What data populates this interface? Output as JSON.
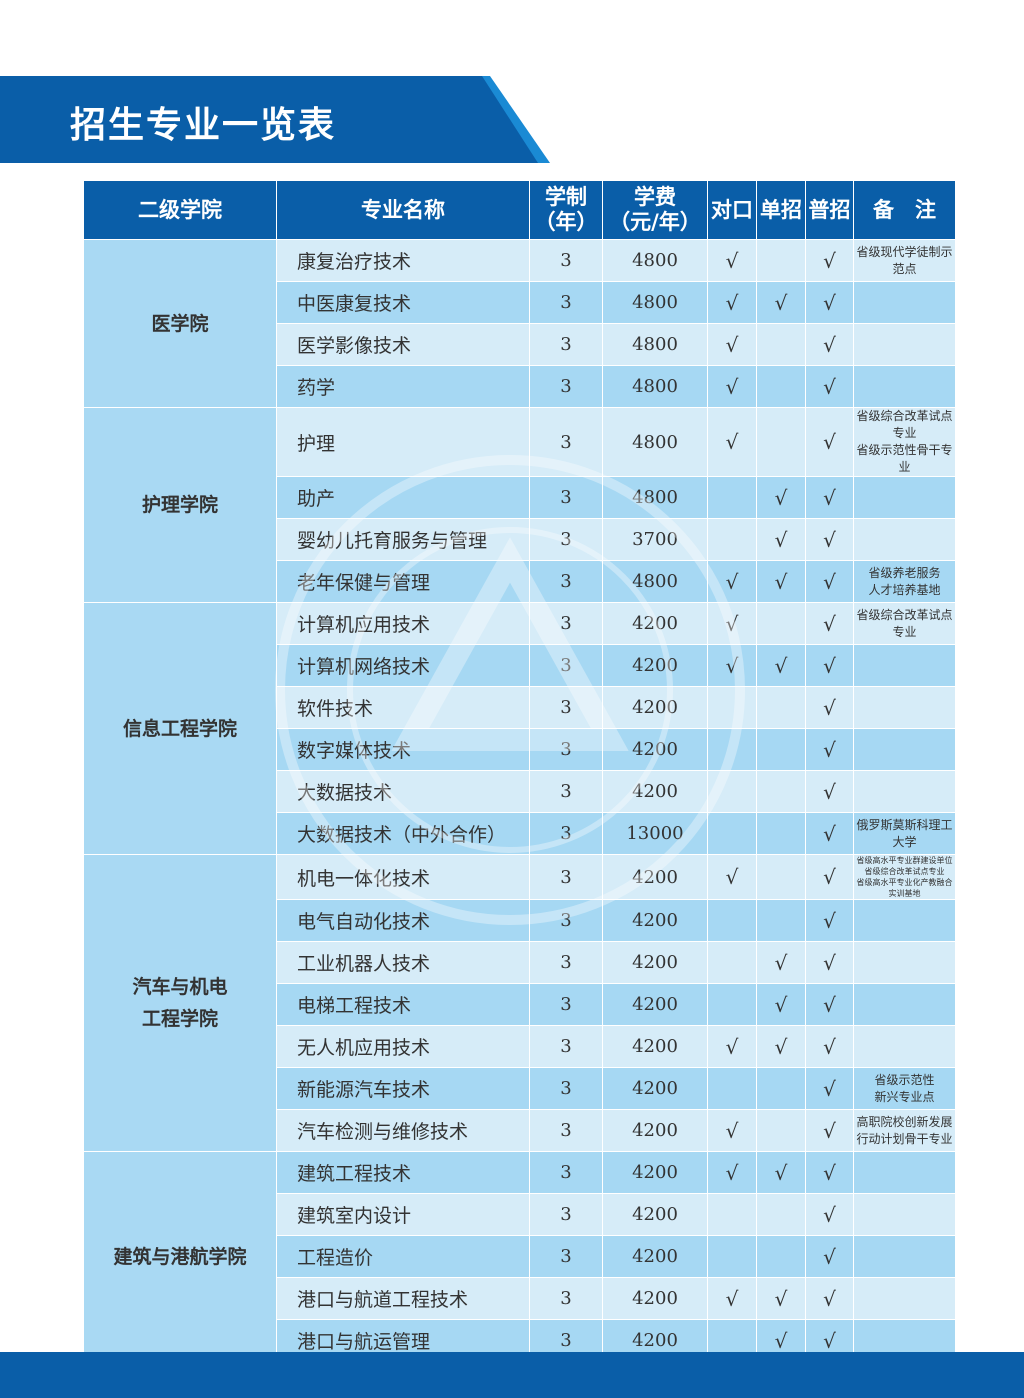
{
  "title": "招生专业一览表",
  "colors": {
    "header": "#0a5ea8",
    "row_light": "#d6ecf8",
    "row_dark": "#a6d8f3",
    "college": "#a9d9f3"
  },
  "columns": [
    "二级学院",
    "专业名称",
    "学制\n（年）",
    "学费\n（元/年）",
    "对口",
    "单招",
    "普招",
    "备　注"
  ],
  "check": "√",
  "colleges": [
    {
      "name": "医学院",
      "rows": [
        {
          "major": "康复治疗技术",
          "years": "3",
          "fee": "4800",
          "duikou": true,
          "danzhao": false,
          "puzhao": true,
          "note": "省级现代学徒制示范点"
        },
        {
          "major": "中医康复技术",
          "years": "3",
          "fee": "4800",
          "duikou": true,
          "danzhao": true,
          "puzhao": true,
          "note": ""
        },
        {
          "major": "医学影像技术",
          "years": "3",
          "fee": "4800",
          "duikou": true,
          "danzhao": false,
          "puzhao": true,
          "note": ""
        },
        {
          "major": "药学",
          "years": "3",
          "fee": "4800",
          "duikou": true,
          "danzhao": false,
          "puzhao": true,
          "note": ""
        }
      ]
    },
    {
      "name": "护理学院",
      "rows": [
        {
          "major": "护理",
          "years": "3",
          "fee": "4800",
          "duikou": true,
          "danzhao": false,
          "puzhao": true,
          "note": "省级综合改革试点专业\n省级示范性骨干专业"
        },
        {
          "major": "助产",
          "years": "3",
          "fee": "4800",
          "duikou": false,
          "danzhao": true,
          "puzhao": true,
          "note": ""
        },
        {
          "major": "婴幼儿托育服务与管理",
          "years": "3",
          "fee": "3700",
          "duikou": false,
          "danzhao": true,
          "puzhao": true,
          "note": ""
        },
        {
          "major": "老年保健与管理",
          "years": "3",
          "fee": "4800",
          "duikou": true,
          "danzhao": true,
          "puzhao": true,
          "note": "省级养老服务\n人才培养基地"
        }
      ]
    },
    {
      "name": "信息工程学院",
      "rows": [
        {
          "major": "计算机应用技术",
          "years": "3",
          "fee": "4200",
          "duikou": true,
          "danzhao": false,
          "puzhao": true,
          "note": "省级综合改革试点专业"
        },
        {
          "major": "计算机网络技术",
          "years": "3",
          "fee": "4200",
          "duikou": true,
          "danzhao": true,
          "puzhao": true,
          "note": ""
        },
        {
          "major": "软件技术",
          "years": "3",
          "fee": "4200",
          "duikou": false,
          "danzhao": false,
          "puzhao": true,
          "note": ""
        },
        {
          "major": "数字媒体技术",
          "years": "3",
          "fee": "4200",
          "duikou": false,
          "danzhao": false,
          "puzhao": true,
          "note": ""
        },
        {
          "major": "大数据技术",
          "years": "3",
          "fee": "4200",
          "duikou": false,
          "danzhao": false,
          "puzhao": true,
          "note": ""
        },
        {
          "major": "大数据技术（中外合作）",
          "years": "3",
          "fee": "13000",
          "duikou": false,
          "danzhao": false,
          "puzhao": true,
          "note": "俄罗斯莫斯科理工大学"
        }
      ]
    },
    {
      "name": "汽车与机电\n工程学院",
      "rows": [
        {
          "major": "机电一体化技术",
          "years": "3",
          "fee": "4200",
          "duikou": true,
          "danzhao": false,
          "puzhao": true,
          "note": "省级高水平专业群建设单位\n省级综合改革试点专业\n省级高水平专业化产教融合实训基地",
          "tiny": true
        },
        {
          "major": "电气自动化技术",
          "years": "3",
          "fee": "4200",
          "duikou": false,
          "danzhao": false,
          "puzhao": true,
          "note": ""
        },
        {
          "major": "工业机器人技术",
          "years": "3",
          "fee": "4200",
          "duikou": false,
          "danzhao": true,
          "puzhao": true,
          "note": ""
        },
        {
          "major": "电梯工程技术",
          "years": "3",
          "fee": "4200",
          "duikou": false,
          "danzhao": true,
          "puzhao": true,
          "note": ""
        },
        {
          "major": "无人机应用技术",
          "years": "3",
          "fee": "4200",
          "duikou": true,
          "danzhao": true,
          "puzhao": true,
          "note": ""
        },
        {
          "major": "新能源汽车技术",
          "years": "3",
          "fee": "4200",
          "duikou": false,
          "danzhao": false,
          "puzhao": true,
          "note": "省级示范性\n新兴专业点"
        },
        {
          "major": "汽车检测与维修技术",
          "years": "3",
          "fee": "4200",
          "duikou": true,
          "danzhao": false,
          "puzhao": true,
          "note": "高职院校创新发展\n行动计划骨干专业"
        }
      ]
    },
    {
      "name": "建筑与港航学院",
      "rows": [
        {
          "major": "建筑工程技术",
          "years": "3",
          "fee": "4200",
          "duikou": true,
          "danzhao": true,
          "puzhao": true,
          "note": ""
        },
        {
          "major": "建筑室内设计",
          "years": "3",
          "fee": "4200",
          "duikou": false,
          "danzhao": false,
          "puzhao": true,
          "note": ""
        },
        {
          "major": "工程造价",
          "years": "3",
          "fee": "4200",
          "duikou": false,
          "danzhao": false,
          "puzhao": true,
          "note": ""
        },
        {
          "major": "港口与航道工程技术",
          "years": "3",
          "fee": "4200",
          "duikou": true,
          "danzhao": true,
          "puzhao": true,
          "note": ""
        },
        {
          "major": "港口与航运管理",
          "years": "3",
          "fee": "4200",
          "duikou": false,
          "danzhao": true,
          "puzhao": true,
          "note": ""
        }
      ]
    }
  ]
}
